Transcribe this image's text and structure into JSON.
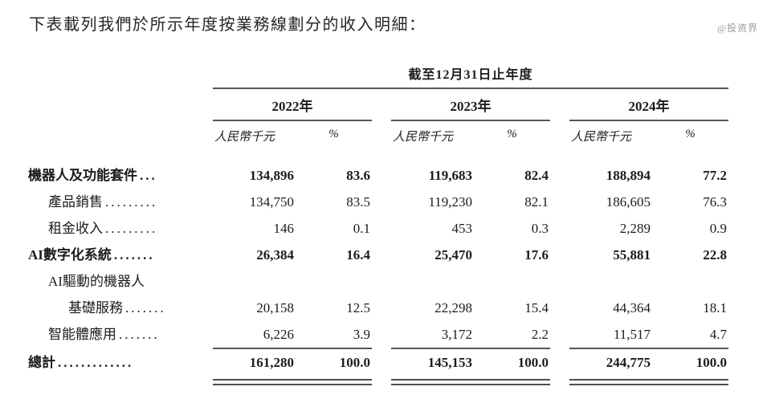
{
  "intro": "下表載列我們於所示年度按業務線劃分的收入明細：",
  "watermark": "@投资界",
  "table": {
    "period_header": "截至12月31日止年度",
    "years": [
      "2022年",
      "2023年",
      "2024年"
    ],
    "unit_label": "人民幣千元",
    "percent_label": "%",
    "rows": [
      {
        "label": "機器人及功能套件",
        "leader": "...",
        "values": [
          "134,896",
          "83.6",
          "119,683",
          "82.4",
          "188,894",
          "77.2"
        ]
      },
      {
        "label": "產品銷售",
        "leader": ".........",
        "values": [
          "134,750",
          "83.5",
          "119,230",
          "82.1",
          "186,605",
          "76.3"
        ]
      },
      {
        "label": "租金收入",
        "leader": ".........",
        "values": [
          "146",
          "0.1",
          "453",
          "0.3",
          "2,289",
          "0.9"
        ]
      },
      {
        "label": "AI數字化系統",
        "leader": ".......",
        "values": [
          "26,384",
          "16.4",
          "25,470",
          "17.6",
          "55,881",
          "22.8"
        ]
      },
      {
        "label": "AI驅動的機器人",
        "label2": "基礎服務",
        "leader": ".......",
        "values": [
          "20,158",
          "12.5",
          "22,298",
          "15.4",
          "44,364",
          "18.1"
        ]
      },
      {
        "label": "智能體應用",
        "leader": ".......",
        "values": [
          "6,226",
          "3.9",
          "3,172",
          "2.2",
          "11,517",
          "4.7"
        ]
      },
      {
        "label": "總計",
        "leader": ".............",
        "values": [
          "161,280",
          "100.0",
          "145,153",
          "100.0",
          "244,775",
          "100.0"
        ]
      }
    ],
    "colors": {
      "ink": "#1c1c1c",
      "rule": "#55565a",
      "watermark": "#9b9b9b"
    }
  }
}
